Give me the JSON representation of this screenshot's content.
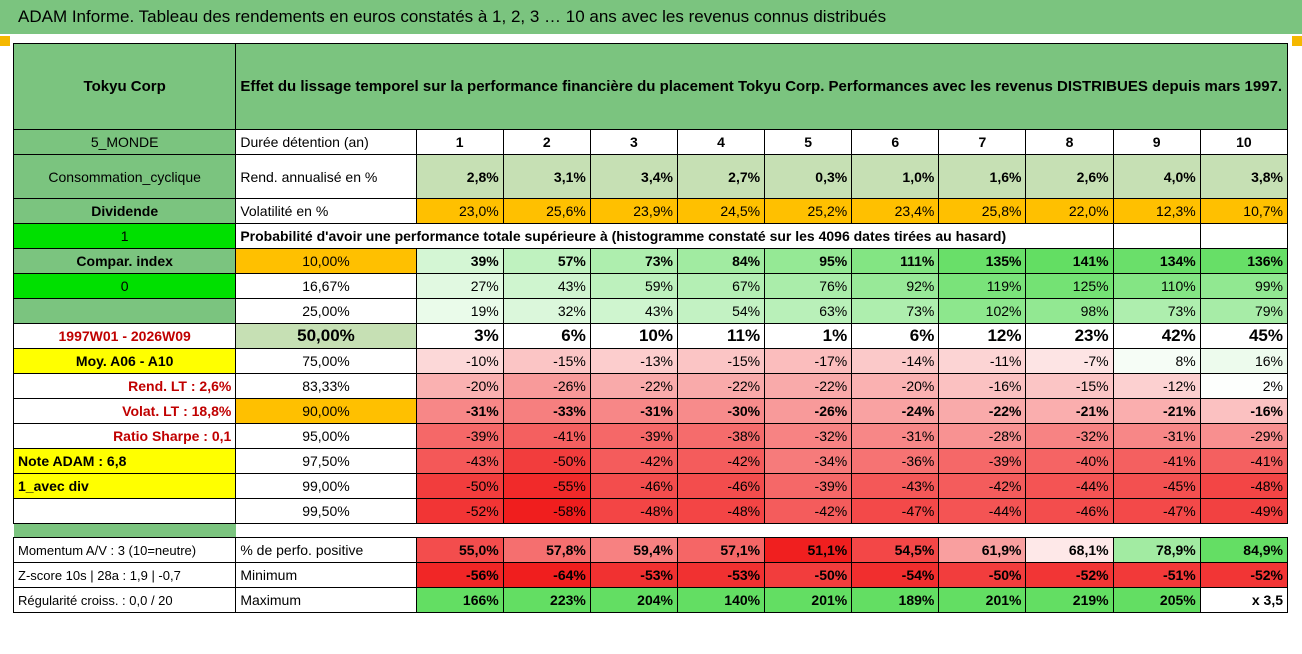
{
  "title": "ADAM Informe. Tableau des rendements en euros constatés à 1, 2, 3 … 10 ans avec les revenus connus distribués",
  "company": "Tokyu Corp",
  "description": "Effet du lissage temporel sur la performance financière du placement Tokyu Corp. Performances avec les revenus DISTRIBUES depuis mars 1997.",
  "left": {
    "region": "5_MONDE",
    "sector": "Consommation_cyclique",
    "dividende": "Dividende",
    "flag1": "1",
    "compar": "Compar. index",
    "flag0": "0",
    "period": "1997W01 - 2026W09",
    "moy": "Moy. A06 - A10",
    "rend_lt": "Rend. LT :   2,6%",
    "volat_lt": "Volat. LT :   18,8%",
    "sharpe": "Ratio Sharpe :   0,1",
    "note": "Note ADAM : 6,8",
    "avec_div": "1_avec div",
    "momentum": "Momentum A/V : 3 (10=neutre)",
    "zscore": "Z-score 10s | 28a : 1,9 | -0,7",
    "regularite": "Régularité croiss. : 0,0 / 20"
  },
  "years": [
    "1",
    "2",
    "3",
    "4",
    "5",
    "6",
    "7",
    "8",
    "9",
    "10"
  ],
  "labels": {
    "duree": "Durée détention (an)",
    "rend": "Rend. annualisé en %",
    "volat": "Volatilité en %",
    "proba": "Probabilité d'avoir une performance totale supérieure à (histogramme constaté sur les 4096 dates tirées au hasard)",
    "pct_pos": "% de perfo. positive",
    "minimum": "Minimum",
    "maximum": "Maximum"
  },
  "rend": [
    "2,8%",
    "3,1%",
    "3,4%",
    "2,7%",
    "0,3%",
    "1,0%",
    "1,6%",
    "2,6%",
    "4,0%",
    "3,8%"
  ],
  "volat": [
    "23,0%",
    "25,6%",
    "23,9%",
    "24,5%",
    "25,2%",
    "23,4%",
    "25,8%",
    "22,0%",
    "12,3%",
    "10,7%"
  ],
  "quantiles": [
    {
      "q": "10,00%",
      "v": [
        "39%",
        "57%",
        "73%",
        "84%",
        "95%",
        "111%",
        "135%",
        "141%",
        "134%",
        "136%"
      ],
      "bold": true
    },
    {
      "q": "16,67%",
      "v": [
        "27%",
        "43%",
        "59%",
        "67%",
        "76%",
        "92%",
        "119%",
        "125%",
        "110%",
        "99%"
      ]
    },
    {
      "q": "25,00%",
      "v": [
        "19%",
        "32%",
        "43%",
        "54%",
        "63%",
        "73%",
        "102%",
        "98%",
        "73%",
        "79%"
      ]
    },
    {
      "q": "50,00%",
      "v": [
        "3%",
        "6%",
        "10%",
        "11%",
        "1%",
        "6%",
        "12%",
        "23%",
        "42%",
        "45%"
      ],
      "big": true
    },
    {
      "q": "75,00%",
      "v": [
        "-10%",
        "-15%",
        "-13%",
        "-15%",
        "-17%",
        "-14%",
        "-11%",
        "-7%",
        "8%",
        "16%"
      ]
    },
    {
      "q": "83,33%",
      "v": [
        "-20%",
        "-26%",
        "-22%",
        "-22%",
        "-22%",
        "-20%",
        "-16%",
        "-15%",
        "-12%",
        "2%"
      ]
    },
    {
      "q": "90,00%",
      "v": [
        "-31%",
        "-33%",
        "-31%",
        "-30%",
        "-26%",
        "-24%",
        "-22%",
        "-21%",
        "-21%",
        "-16%"
      ],
      "bold": true
    },
    {
      "q": "95,00%",
      "v": [
        "-39%",
        "-41%",
        "-39%",
        "-38%",
        "-32%",
        "-31%",
        "-28%",
        "-32%",
        "-31%",
        "-29%"
      ]
    },
    {
      "q": "97,50%",
      "v": [
        "-43%",
        "-50%",
        "-42%",
        "-42%",
        "-34%",
        "-36%",
        "-39%",
        "-40%",
        "-41%",
        "-41%"
      ]
    },
    {
      "q": "99,00%",
      "v": [
        "-50%",
        "-55%",
        "-46%",
        "-46%",
        "-39%",
        "-43%",
        "-42%",
        "-44%",
        "-45%",
        "-48%"
      ]
    },
    {
      "q": "99,50%",
      "v": [
        "-52%",
        "-58%",
        "-48%",
        "-48%",
        "-42%",
        "-47%",
        "-44%",
        "-46%",
        "-47%",
        "-49%"
      ]
    }
  ],
  "pct_pos": [
    "55,0%",
    "57,8%",
    "59,4%",
    "57,1%",
    "51,1%",
    "54,5%",
    "61,9%",
    "68,1%",
    "78,9%",
    "84,9%"
  ],
  "minimum": [
    "-56%",
    "-64%",
    "-53%",
    "-53%",
    "-50%",
    "-54%",
    "-50%",
    "-52%",
    "-51%",
    "-52%"
  ],
  "maximum": [
    "166%",
    "223%",
    "204%",
    "140%",
    "201%",
    "189%",
    "201%",
    "219%",
    "205%",
    "x 3,5"
  ]
}
